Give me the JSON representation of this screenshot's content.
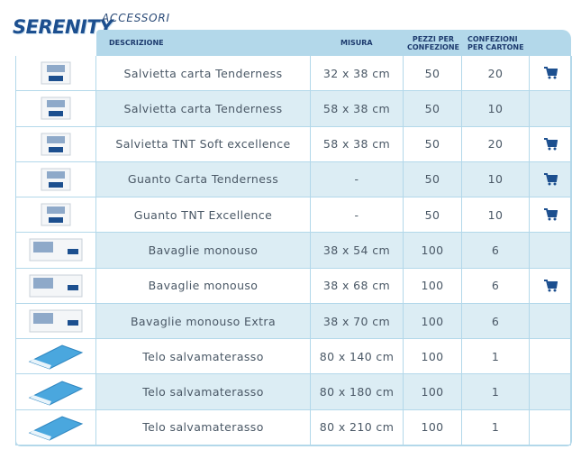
{
  "header": {
    "logo": "SERENITY",
    "section": "ACCESSORI"
  },
  "table": {
    "columns": [
      "DESCRIZIONE",
      "MISURA",
      "PEZZI PER CONFEZIONE",
      "CONFEZIONI PER CARTONE"
    ],
    "rows": [
      [
        "Salvietta carta Tenderness",
        "32 x 38 cm",
        50,
        20
      ],
      [
        "Salvietta carta Tenderness",
        "58 x 38 cm",
        50,
        10
      ],
      [
        "Salvietta TNT Soft excellence",
        "58 x 38 cm",
        50,
        20
      ],
      [
        "Guanto Carta  Tenderness",
        "-",
        50,
        10
      ],
      [
        "Guanto TNT  Excellence",
        "-",
        50,
        10
      ],
      [
        "Bavaglie monouso",
        "38 x 54 cm",
        100,
        6
      ],
      [
        "Bavaglie monouso",
        "38 x 68 cm",
        100,
        6
      ],
      [
        "Bavaglie monouso Extra",
        "38 x 70 cm",
        100,
        6
      ],
      [
        "Telo salvamaterasso",
        "80 x 140 cm",
        100,
        1
      ],
      [
        "Telo salvamaterasso",
        "80 x 180 cm",
        100,
        1
      ],
      [
        "Telo salvamaterasso",
        "80 x 210 cm",
        100,
        1
      ]
    ]
  }
}
